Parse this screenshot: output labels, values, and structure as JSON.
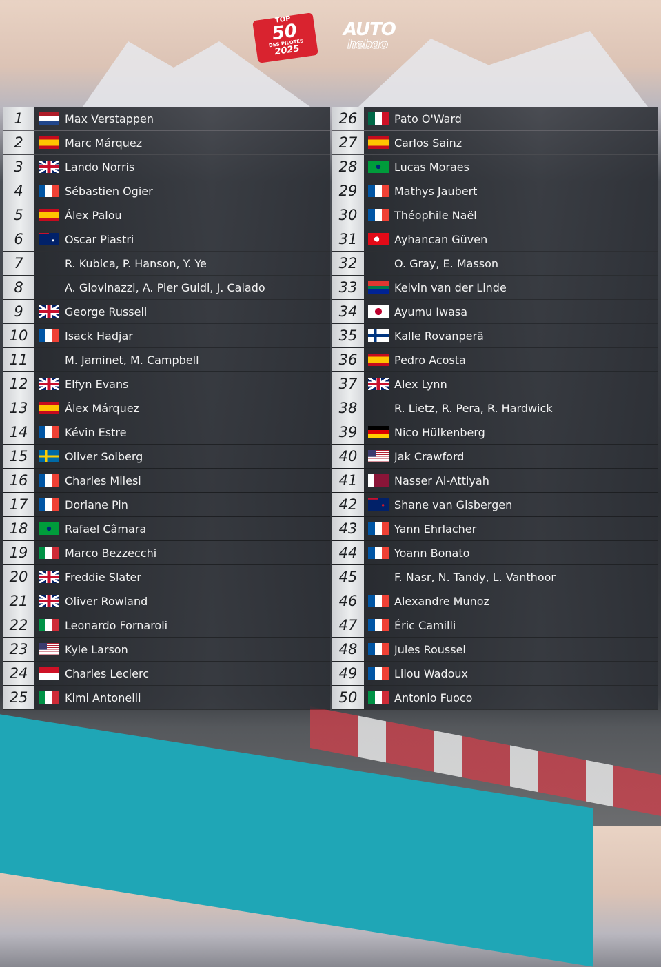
{
  "logos": {
    "top50": "TOP 50 DES PILOTES 2025",
    "publisher": "AUTO hebdo"
  },
  "left": [
    {
      "rank": "1",
      "flag": "nl",
      "name": "Max Verstappen"
    },
    {
      "rank": "2",
      "flag": "es",
      "name": "Marc Márquez"
    },
    {
      "rank": "3",
      "flag": "gb",
      "name": "Lando Norris"
    },
    {
      "rank": "4",
      "flag": "fr",
      "name": "Sébastien Ogier"
    },
    {
      "rank": "5",
      "flag": "es",
      "name": "Álex Palou"
    },
    {
      "rank": "6",
      "flag": "au",
      "name": "Oscar Piastri"
    },
    {
      "rank": "7",
      "flag": "",
      "name": "R. Kubica, P. Hanson, Y. Ye"
    },
    {
      "rank": "8",
      "flag": "",
      "name": "A. Giovinazzi, A. Pier Guidi, J. Calado"
    },
    {
      "rank": "9",
      "flag": "gb",
      "name": "George Russell"
    },
    {
      "rank": "10",
      "flag": "fr",
      "name": "Isack Hadjar"
    },
    {
      "rank": "11",
      "flag": "",
      "name": "M. Jaminet, M. Campbell"
    },
    {
      "rank": "12",
      "flag": "gb",
      "name": "Elfyn Evans"
    },
    {
      "rank": "13",
      "flag": "es",
      "name": "Álex Márquez"
    },
    {
      "rank": "14",
      "flag": "fr",
      "name": "Kévin Estre"
    },
    {
      "rank": "15",
      "flag": "se",
      "name": "Oliver Solberg"
    },
    {
      "rank": "16",
      "flag": "fr",
      "name": "Charles Milesi"
    },
    {
      "rank": "17",
      "flag": "fr",
      "name": "Doriane Pin"
    },
    {
      "rank": "18",
      "flag": "br",
      "name": "Rafael Câmara"
    },
    {
      "rank": "19",
      "flag": "it",
      "name": "Marco Bezzecchi"
    },
    {
      "rank": "20",
      "flag": "gb",
      "name": "Freddie Slater"
    },
    {
      "rank": "21",
      "flag": "gb",
      "name": "Oliver Rowland"
    },
    {
      "rank": "22",
      "flag": "it",
      "name": "Leonardo Fornaroli"
    },
    {
      "rank": "23",
      "flag": "us",
      "name": "Kyle Larson"
    },
    {
      "rank": "24",
      "flag": "mc",
      "name": "Charles Leclerc"
    },
    {
      "rank": "25",
      "flag": "it",
      "name": "Kimi Antonelli"
    }
  ],
  "right": [
    {
      "rank": "26",
      "flag": "mx",
      "name": "Pato O'Ward"
    },
    {
      "rank": "27",
      "flag": "es",
      "name": "Carlos Sainz"
    },
    {
      "rank": "28",
      "flag": "br",
      "name": "Lucas Moraes"
    },
    {
      "rank": "29",
      "flag": "fr",
      "name": "Mathys Jaubert"
    },
    {
      "rank": "30",
      "flag": "fr",
      "name": "Théophile Naël"
    },
    {
      "rank": "31",
      "flag": "tr",
      "name": "Ayhancan Güven"
    },
    {
      "rank": "32",
      "flag": "",
      "name": "O. Gray, E. Masson"
    },
    {
      "rank": "33",
      "flag": "za",
      "name": "Kelvin van der Linde"
    },
    {
      "rank": "34",
      "flag": "jp",
      "name": "Ayumu Iwasa"
    },
    {
      "rank": "35",
      "flag": "fi",
      "name": "Kalle Rovanperä"
    },
    {
      "rank": "36",
      "flag": "es",
      "name": "Pedro Acosta"
    },
    {
      "rank": "37",
      "flag": "gb",
      "name": "Alex Lynn"
    },
    {
      "rank": "38",
      "flag": "",
      "name": "R. Lietz, R. Pera, R. Hardwick"
    },
    {
      "rank": "39",
      "flag": "de",
      "name": "Nico Hülkenberg"
    },
    {
      "rank": "40",
      "flag": "us",
      "name": "Jak Crawford"
    },
    {
      "rank": "41",
      "flag": "qa",
      "name": "Nasser Al-Attiyah"
    },
    {
      "rank": "42",
      "flag": "nz",
      "name": "Shane van Gisbergen"
    },
    {
      "rank": "43",
      "flag": "fr",
      "name": "Yann Ehrlacher"
    },
    {
      "rank": "44",
      "flag": "fr",
      "name": "Yoann Bonato"
    },
    {
      "rank": "45",
      "flag": "",
      "name": "F. Nasr, N. Tandy, L. Vanthoor"
    },
    {
      "rank": "46",
      "flag": "fr",
      "name": "Alexandre Munoz"
    },
    {
      "rank": "47",
      "flag": "fr",
      "name": "Éric Camilli"
    },
    {
      "rank": "48",
      "flag": "fr",
      "name": "Jules Roussel"
    },
    {
      "rank": "49",
      "flag": "fr",
      "name": "Lilou Wadoux"
    },
    {
      "rank": "50",
      "flag": "it",
      "name": "Antonio Fuoco"
    }
  ]
}
